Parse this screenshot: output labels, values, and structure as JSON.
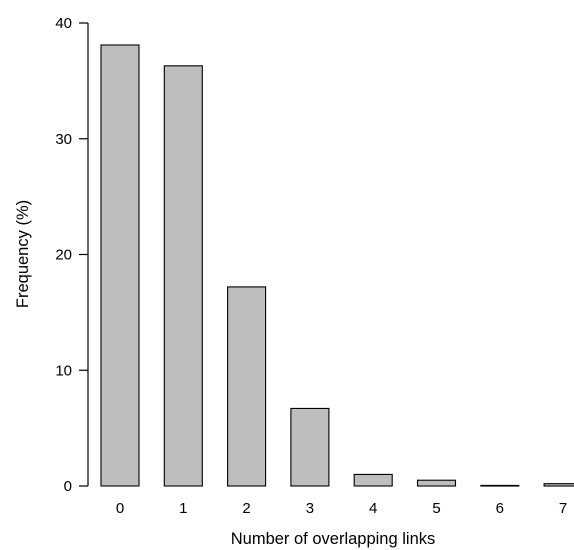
{
  "chart_data": {
    "type": "bar",
    "categories": [
      "0",
      "1",
      "2",
      "3",
      "4",
      "5",
      "6",
      "7"
    ],
    "values": [
      38.1,
      36.3,
      17.2,
      6.7,
      1.0,
      0.5,
      0.05,
      0.2
    ],
    "xlabel": "Number of overlapping links",
    "ylabel": "Frequency (%)",
    "ylim": [
      0,
      40
    ],
    "yticks": [
      0,
      10,
      20,
      30,
      40
    ],
    "grid": false,
    "bar_color": "#bebebe"
  }
}
